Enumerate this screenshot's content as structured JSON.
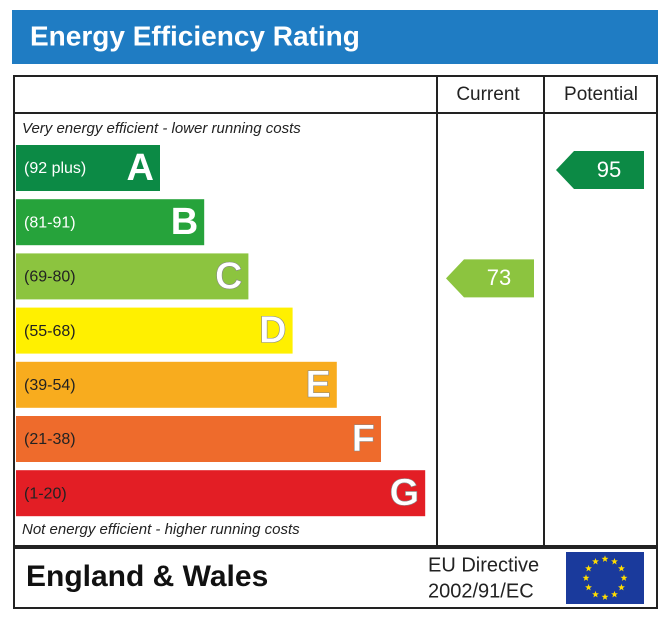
{
  "header": {
    "title": "Energy Efficiency Rating"
  },
  "columns": [
    "Current",
    "Potential"
  ],
  "top_note": "Very energy efficient - lower running costs",
  "bottom_note": "Not energy efficient - higher running costs",
  "bands": [
    {
      "range": "(92 plus)",
      "letter": "A",
      "color": "#0c8a45"
    },
    {
      "range": "(81-91)",
      "letter": "B",
      "color": "#26a33b"
    },
    {
      "range": "(69-80)",
      "letter": "C",
      "color": "#8cc43f"
    },
    {
      "range": "(55-68)",
      "letter": "D",
      "color": "#fff000"
    },
    {
      "range": "(39-54)",
      "letter": "E",
      "color": "#f8ac1e"
    },
    {
      "range": "(21-38)",
      "letter": "F",
      "color": "#ee6b2c"
    },
    {
      "range": "(1-20)",
      "letter": "G",
      "color": "#e31e25"
    }
  ],
  "ratings": {
    "current": 73,
    "potential": 95
  },
  "footer": {
    "region": "England & Wales",
    "directive_line1": "EU Directive",
    "directive_line2": "2002/91/EC"
  }
}
